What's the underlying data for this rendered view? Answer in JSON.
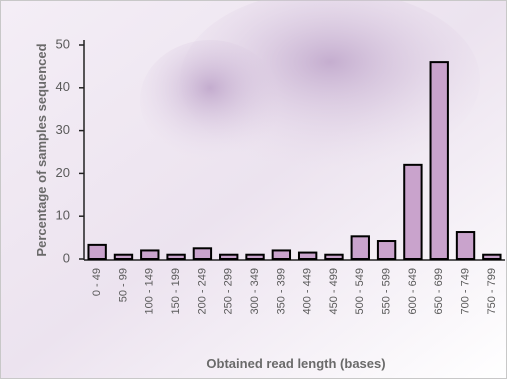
{
  "chart_data": {
    "type": "bar",
    "x_label": "Obtained read length (bases)",
    "y_label": "Percentage of samples sequenced",
    "categories": [
      "0 - 49",
      "50 - 99",
      "100 - 149",
      "150 - 199",
      "200 - 249",
      "250 - 299",
      "300 - 349",
      "350 - 399",
      "400 - 449",
      "450 - 499",
      "500 - 549",
      "550 - 599",
      "600 - 649",
      "650 - 699",
      "700 - 749",
      "750 - 799"
    ],
    "values": [
      3.3,
      1,
      2,
      1,
      2.5,
      1,
      1,
      2,
      1.5,
      1,
      5.3,
      4.2,
      22,
      46,
      6.3,
      1
    ],
    "color": "#c9a3cc",
    "ylim": [
      0,
      50
    ],
    "yticks": [
      0,
      10,
      20,
      30,
      40,
      50
    ],
    "grid": false
  }
}
